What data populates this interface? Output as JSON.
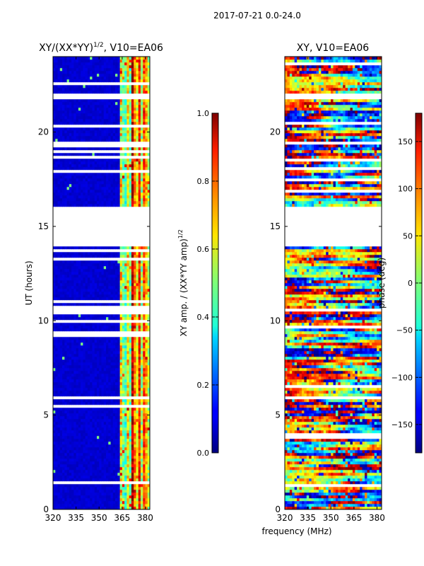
{
  "figure_title": "2017-07-21 0.0-24.0",
  "chart_data": [
    {
      "type": "heatmap",
      "title_main": "XY/(XX*YY)",
      "title_exp": "1/2",
      "title_suffix": ", V10=EA06",
      "xlabel": "frequency (MHz)",
      "ylabel": "UT (hours)",
      "xlim": [
        320,
        383
      ],
      "ylim": [
        0,
        24
      ],
      "xticks": [
        320,
        335,
        350,
        365,
        380
      ],
      "yticks": [
        0,
        5,
        10,
        15,
        20
      ],
      "colorbar": {
        "label_main": "XY amp. / (XX*YY amp)",
        "label_exp": "1/2",
        "range": [
          0.0,
          1.0
        ],
        "ticks": [
          "0.0",
          "0.2",
          "0.4",
          "0.6",
          "0.8",
          "1.0"
        ],
        "tick_values": [
          0.0,
          0.2,
          0.4,
          0.6,
          0.8,
          1.0
        ],
        "colormap": "jet"
      },
      "flagged_time_ranges_hours": [
        [
          14.0,
          16.1
        ],
        [
          21.8,
          22.1
        ],
        [
          10.3,
          10.8
        ],
        [
          5.8,
          6.0
        ],
        [
          19.3,
          19.5
        ],
        [
          9.3,
          9.5
        ],
        [
          22.5,
          22.6
        ]
      ],
      "bright_band_frequency_MHz": [
        363,
        383
      ]
    },
    {
      "type": "heatmap",
      "title_main": "XY, V10=EA06",
      "xlabel": "frequency (MHz)",
      "ylabel": "",
      "xlim": [
        320,
        383
      ],
      "ylim": [
        0,
        24
      ],
      "xticks": [
        320,
        335,
        350,
        365,
        380
      ],
      "yticks": [
        0,
        5,
        10,
        15,
        20
      ],
      "colorbar": {
        "label_main": "phase (deg)",
        "range": [
          -180,
          180
        ],
        "ticks": [
          "−150",
          "−100",
          "−50",
          "0",
          "50",
          "100",
          "150"
        ],
        "tick_values": [
          -150,
          -100,
          -50,
          0,
          50,
          100,
          150
        ],
        "colormap": "jet"
      },
      "flagged_time_ranges_hours": [
        [
          14.0,
          16.1
        ],
        [
          21.8,
          22.0
        ],
        [
          10.5,
          10.7
        ],
        [
          5.8,
          5.95
        ],
        [
          19.3,
          19.5
        ],
        [
          9.4,
          9.5
        ]
      ]
    }
  ]
}
